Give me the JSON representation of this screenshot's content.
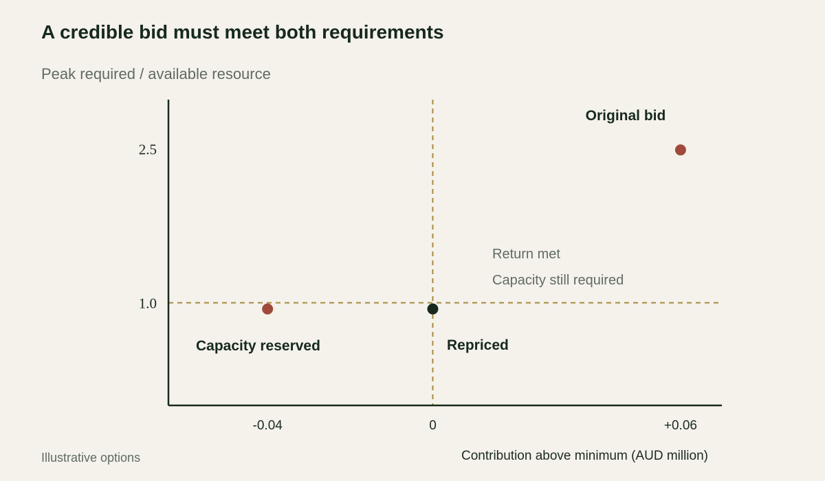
{
  "chart_data": {
    "type": "scatter",
    "title": "A credible bid must meet both requirements",
    "ylabel": "Peak required / available resource",
    "xlabel": "Contribution above minimum (AUD million)",
    "xlim": [
      -0.064,
      0.07
    ],
    "ylim": [
      0.0,
      2.98
    ],
    "x_ticks": [
      {
        "value": -0.04,
        "label": "-0.04"
      },
      {
        "value": 0,
        "label": "0"
      },
      {
        "value": 0.06,
        "label": "+0.06"
      }
    ],
    "y_ticks": [
      {
        "value": 1.0,
        "label": "1.0"
      },
      {
        "value": 2.5,
        "label": "2.5"
      }
    ],
    "reference_lines": [
      {
        "axis": "x",
        "value": 0,
        "style": "dashed",
        "color": "#a8893f"
      },
      {
        "axis": "y",
        "value": 1.0,
        "style": "dashed",
        "color": "#a8893f"
      }
    ],
    "points": [
      {
        "name": "Original bid",
        "x": 0.06,
        "y": 2.49,
        "color": "#a04a3b"
      },
      {
        "name": "Capacity reserved",
        "x": -0.04,
        "y": 0.94,
        "color": "#a04a3b"
      },
      {
        "name": "Repriced",
        "x": 0,
        "y": 0.94,
        "color": "#16291c"
      }
    ],
    "annotations": [
      "Return met",
      "Capacity still required"
    ],
    "grid": false,
    "legend": "none"
  },
  "footer_note": "Illustrative options",
  "colors": {
    "background": "#f5f2eb",
    "axis": "#16291c",
    "reference": "#a8893f",
    "highlight": "#a04a3b",
    "selected": "#16291c",
    "muted_text": "#5f6b63"
  }
}
